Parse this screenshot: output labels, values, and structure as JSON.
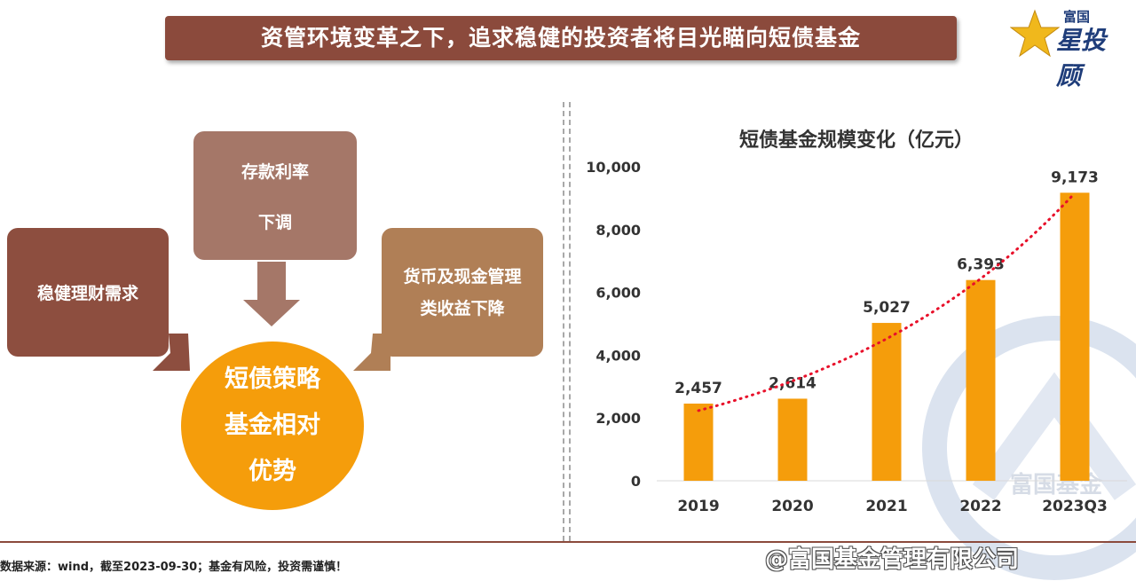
{
  "banner": {
    "title": "资管环境变革之下，追求稳健的投资者将目光瞄向短债基金"
  },
  "logo": {
    "small_text": "富国",
    "big_text": "星投顾"
  },
  "drivers": {
    "left": "稳健理财需求",
    "top_line1": "存款利率",
    "top_line2": "下调",
    "right_line1": "货币及现金管理",
    "right_line2": "类收益下降"
  },
  "center": {
    "line1": "短债策略",
    "line2": "基金相对",
    "line3": "优势"
  },
  "colors": {
    "bar": "#f59d0b",
    "trend": "#e8102a",
    "banner": "#8b4a3c"
  },
  "chart_data": {
    "type": "bar",
    "title": "短债基金规模变化（亿元）",
    "categories": [
      "2019",
      "2020",
      "2021",
      "2022",
      "2023Q3"
    ],
    "values": [
      2457,
      2614,
      5027,
      6393,
      9173
    ],
    "value_labels": [
      "2,457",
      "2,614",
      "5,027",
      "6,393",
      "9,173"
    ],
    "ylim": [
      0,
      10000
    ],
    "yticks": [
      0,
      2000,
      4000,
      6000,
      8000,
      10000
    ],
    "ytick_labels": [
      "0",
      "2,000",
      "4,000",
      "6,000",
      "8,000",
      "10,000"
    ],
    "trendline": "dotted exponential",
    "grid": false,
    "legend": "none"
  },
  "watermark": {
    "text": "富国基金"
  },
  "footer": {
    "note": "数据来源：wind，截至2023-09-30；基金有风险，投资需谨慎！",
    "weibo": "@富国基金管理有限公司"
  }
}
